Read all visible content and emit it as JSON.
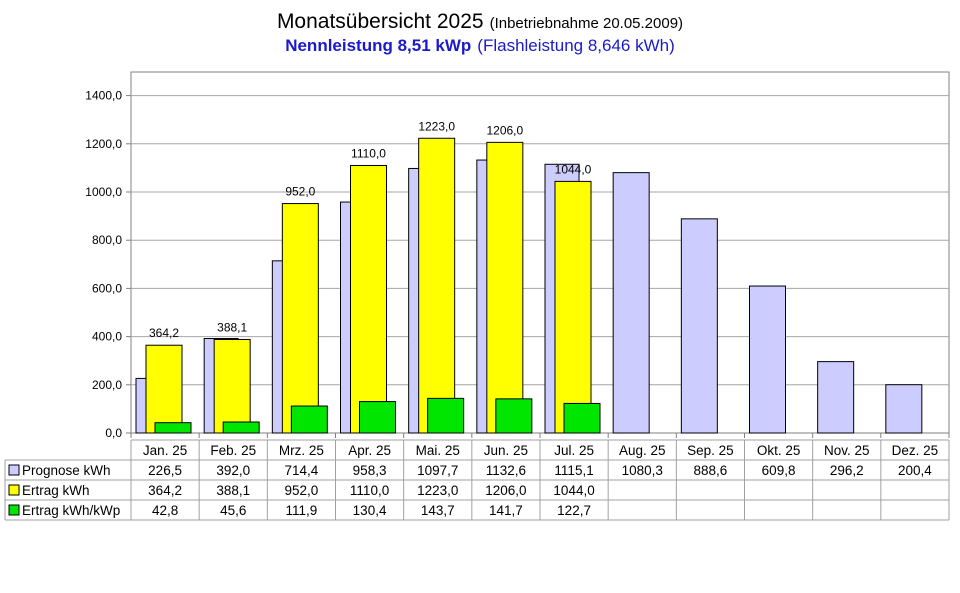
{
  "title": {
    "main": "Monatsübersicht 2025",
    "note": "(Inbetriebnahme  20.05.2009)",
    "subtitle_bold": "Nennleistung 8,51 kWp",
    "subtitle_normal": "(Flashleistung 8,646 kWh)"
  },
  "chart_data": {
    "type": "bar",
    "title": "Monatsübersicht 2025",
    "categories": [
      "Jan. 25",
      "Feb. 25",
      "Mrz. 25",
      "Apr. 25",
      "Mai. 25",
      "Jun. 25",
      "Jul. 25",
      "Aug. 25",
      "Sep. 25",
      "Okt. 25",
      "Nov. 25",
      "Dez. 25"
    ],
    "series": [
      {
        "name": "Prognose kWh",
        "color": "#ccccff",
        "values": [
          226.5,
          392.0,
          714.4,
          958.3,
          1097.7,
          1132.6,
          1115.1,
          1080.3,
          888.6,
          609.8,
          296.2,
          200.4
        ],
        "labels": [
          "226,5",
          "392,0",
          "714,4",
          "958,3",
          "1097,7",
          "1132,6",
          "1115,1",
          "1080,3",
          "888,6",
          "609,8",
          "296,2",
          "200,4"
        ]
      },
      {
        "name": "Ertrag kWh",
        "color": "#ffff00",
        "values": [
          364.2,
          388.1,
          952.0,
          1110.0,
          1223.0,
          1206.0,
          1044.0,
          null,
          null,
          null,
          null,
          null
        ],
        "labels": [
          "364,2",
          "388,1",
          "952,0",
          "1110,0",
          "1223,0",
          "1206,0",
          "1044,0",
          "",
          "",
          "",
          "",
          ""
        ]
      },
      {
        "name": "Ertrag kWh/kWp",
        "color": "#00e600",
        "values": [
          42.8,
          45.6,
          111.9,
          130.4,
          143.7,
          141.7,
          122.7,
          null,
          null,
          null,
          null,
          null
        ],
        "labels": [
          "42,8",
          "45,6",
          "111,9",
          "130,4",
          "143,7",
          "141,7",
          "122,7",
          "",
          "",
          "",
          "",
          ""
        ]
      }
    ],
    "ylim": [
      0,
      1400
    ],
    "yticks": [
      0,
      200,
      400,
      600,
      800,
      1000,
      1200,
      1400
    ],
    "ytick_labels": [
      "0,0",
      "200,0",
      "400,0",
      "600,0",
      "800,0",
      "1000,0",
      "1200,0",
      "1400,0"
    ],
    "grid": true,
    "legend": "data table below chart"
  }
}
